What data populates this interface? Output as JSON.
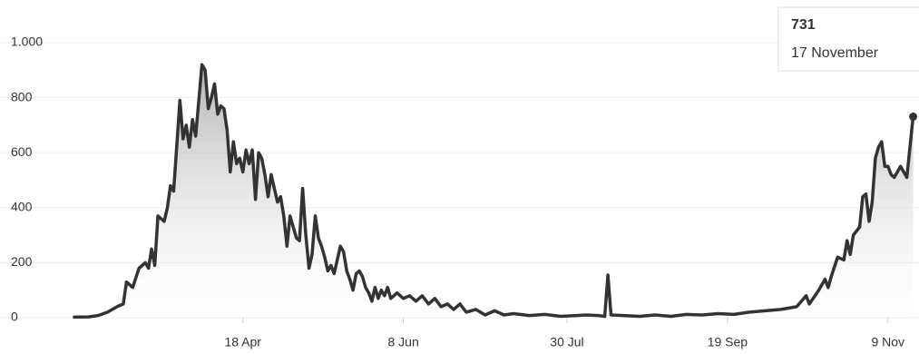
{
  "chart_data": {
    "type": "line",
    "x": [
      55,
      60,
      63,
      66,
      69,
      71,
      72,
      74,
      76,
      78,
      79,
      80,
      81,
      82,
      84,
      85,
      86,
      87,
      89,
      90,
      91,
      92,
      93,
      94,
      96,
      97,
      98,
      99,
      100,
      101,
      102,
      103,
      104,
      105,
      106,
      107,
      108,
      109,
      110,
      111,
      112,
      113,
      114,
      115,
      116,
      117,
      118,
      119,
      120,
      121,
      122,
      123,
      124,
      125,
      126,
      127,
      128,
      129,
      130,
      131,
      132,
      133,
      134,
      135,
      136,
      137,
      138,
      140,
      141,
      142,
      143,
      144,
      145,
      146,
      147,
      148,
      149,
      150,
      151,
      152,
      153,
      154,
      155,
      156,
      158,
      160,
      162,
      164,
      166,
      168,
      170,
      172,
      174,
      176,
      178,
      180,
      183,
      186,
      189,
      192,
      195,
      200,
      205,
      210,
      215,
      218,
      222,
      224,
      225,
      226,
      230,
      235,
      240,
      245,
      250,
      255,
      260,
      265,
      270,
      275,
      280,
      285,
      288,
      289,
      292,
      294,
      295,
      296,
      298,
      300,
      301,
      302,
      303,
      305,
      306,
      307,
      308,
      309,
      310,
      311,
      312,
      313,
      314,
      315,
      316,
      318,
      320,
      322
    ],
    "values": [
      2,
      3,
      8,
      20,
      40,
      50,
      130,
      110,
      180,
      200,
      180,
      250,
      190,
      370,
      350,
      400,
      480,
      460,
      790,
      650,
      700,
      620,
      720,
      660,
      920,
      900,
      760,
      800,
      850,
      740,
      770,
      760,
      680,
      530,
      640,
      560,
      580,
      530,
      610,
      560,
      610,
      430,
      600,
      580,
      520,
      440,
      520,
      470,
      420,
      440,
      370,
      260,
      370,
      330,
      290,
      280,
      470,
      300,
      180,
      230,
      370,
      290,
      260,
      220,
      170,
      190,
      160,
      260,
      240,
      170,
      140,
      100,
      160,
      170,
      150,
      110,
      90,
      60,
      110,
      70,
      100,
      80,
      110,
      70,
      90,
      70,
      80,
      60,
      80,
      50,
      70,
      40,
      50,
      30,
      50,
      20,
      30,
      10,
      25,
      10,
      15,
      8,
      12,
      5,
      8,
      10,
      8,
      5,
      155,
      10,
      8,
      5,
      10,
      5,
      12,
      10,
      15,
      12,
      20,
      25,
      30,
      40,
      80,
      50,
      100,
      140,
      110,
      150,
      220,
      210,
      280,
      230,
      300,
      330,
      440,
      450,
      350,
      420,
      580,
      620,
      640,
      550,
      550,
      520,
      510,
      550,
      510,
      731
    ],
    "color": "#333333",
    "xlim": [
      52,
      323
    ],
    "xticks": [
      {
        "value": 109,
        "label": "18 Apr"
      },
      {
        "value": 160,
        "label": "8 Jun"
      },
      {
        "value": 212,
        "label": "30 Jul"
      },
      {
        "value": 263,
        "label": "19 Sep"
      },
      {
        "value": 314,
        "label": "9 Nov"
      }
    ],
    "ylim": [
      0,
      1000
    ],
    "yticks": [
      0,
      200,
      400,
      600,
      800,
      {
        "value": 1000,
        "label": "1.000"
      }
    ],
    "grid": true,
    "tooltip_date": "17 November"
  }
}
